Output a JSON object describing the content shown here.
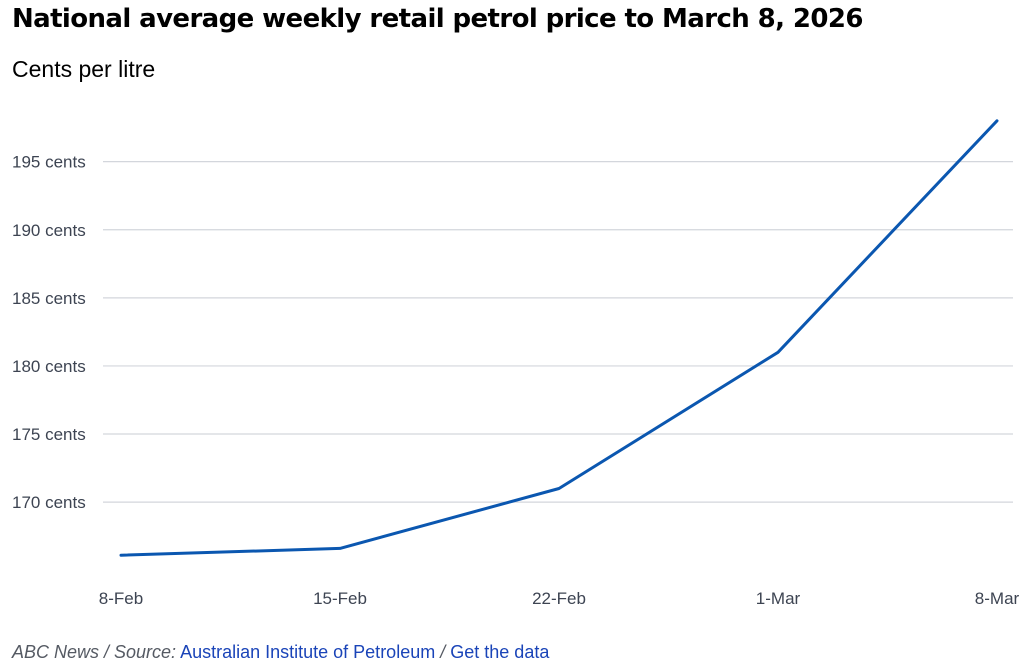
{
  "chart_data": {
    "type": "line",
    "title": "National average weekly retail petrol price to March 8, 2026",
    "subtitle": "Cents per litre",
    "xlabel": "",
    "ylabel": "",
    "categories": [
      "8-Feb",
      "15-Feb",
      "22-Feb",
      "1-Mar",
      "8-Mar"
    ],
    "series": [
      {
        "values": [
          166.1,
          166.6,
          171.0,
          181.0,
          198.0
        ]
      }
    ],
    "ylim": [
      164.5,
      198.5
    ],
    "yticks": [
      195,
      190,
      185,
      180,
      175,
      170
    ],
    "ytick_labels": [
      "195 cents",
      "190 cents",
      "185 cents",
      "180 cents",
      "175 cents",
      "170 cents"
    ],
    "grid": "horizontal",
    "line_color": "#0b57b0",
    "grid_color": "#d3d6dc"
  },
  "footer": {
    "prefix": "ABC News / Source:",
    "source_link": "Australian Institute of Petroleum",
    "separator": "/",
    "data_link": "Get the data"
  }
}
